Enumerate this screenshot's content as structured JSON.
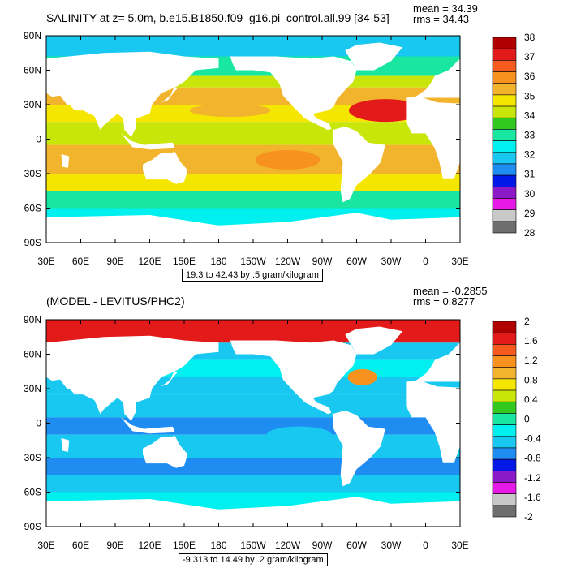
{
  "chart_data": [
    {
      "type": "heatmap",
      "title": "SALINITY at z=   5.0m, b.e15.B1850.f09_g16.pi_control.all.99 [34-53]",
      "stats": {
        "mean": "mean = 34.39",
        "rms": "rms = 34.43"
      },
      "caption": "19.3 to 42.43 by .5 gram/kilogram",
      "x_ticks": [
        "30E",
        "60E",
        "90E",
        "120E",
        "150E",
        "180",
        "150W",
        "120W",
        "90W",
        "60W",
        "30W",
        "0",
        "30E"
      ],
      "y_ticks": [
        "90N",
        "60N",
        "30N",
        "0",
        "30S",
        "60S",
        "90S"
      ],
      "xlim": [
        30,
        390
      ],
      "ylim": [
        -90,
        90
      ],
      "colorbar": {
        "labels": [
          "38",
          "37",
          "36",
          "35",
          "34",
          "33",
          "32",
          "31",
          "30",
          "29",
          "28"
        ],
        "colors": [
          "#b00000",
          "#e31a1a",
          "#f55a1e",
          "#f7921e",
          "#f2b42d",
          "#f5e600",
          "#c8e60a",
          "#32c81e",
          "#19e6a0",
          "#00f0f0",
          "#19c8f0",
          "#1e8cf0",
          "#0019e6",
          "#8c19c8",
          "#e619e6",
          "#c8c8c8",
          "#6e6e6e"
        ]
      }
    },
    {
      "type": "heatmap",
      "title": "(MODEL - LEVITUS/PHC2)",
      "stats": {
        "mean": "mean = -0.2855",
        "rms": "rms = 0.8277"
      },
      "caption": "-9.313 to 14.49 by .2 gram/kilogram",
      "x_ticks": [
        "30E",
        "60E",
        "90E",
        "120E",
        "150E",
        "180",
        "150W",
        "120W",
        "90W",
        "60W",
        "30W",
        "0",
        "30E"
      ],
      "y_ticks": [
        "90N",
        "60N",
        "30N",
        "0",
        "30S",
        "60S",
        "90S"
      ],
      "xlim": [
        30,
        390
      ],
      "ylim": [
        -90,
        90
      ],
      "colorbar": {
        "labels": [
          "2",
          "1.6",
          "1.2",
          "0.8",
          "0.4",
          "0",
          "-0.4",
          "-0.8",
          "-1.2",
          "-1.6",
          "-2"
        ],
        "colors": [
          "#b00000",
          "#e31a1a",
          "#f55a1e",
          "#f7921e",
          "#f2b42d",
          "#f5e600",
          "#c8e60a",
          "#32c81e",
          "#19e6a0",
          "#00f0f0",
          "#19c8f0",
          "#1e8cf0",
          "#0019e6",
          "#8c19c8",
          "#e619e6",
          "#c8c8c8",
          "#6e6e6e"
        ]
      }
    }
  ]
}
